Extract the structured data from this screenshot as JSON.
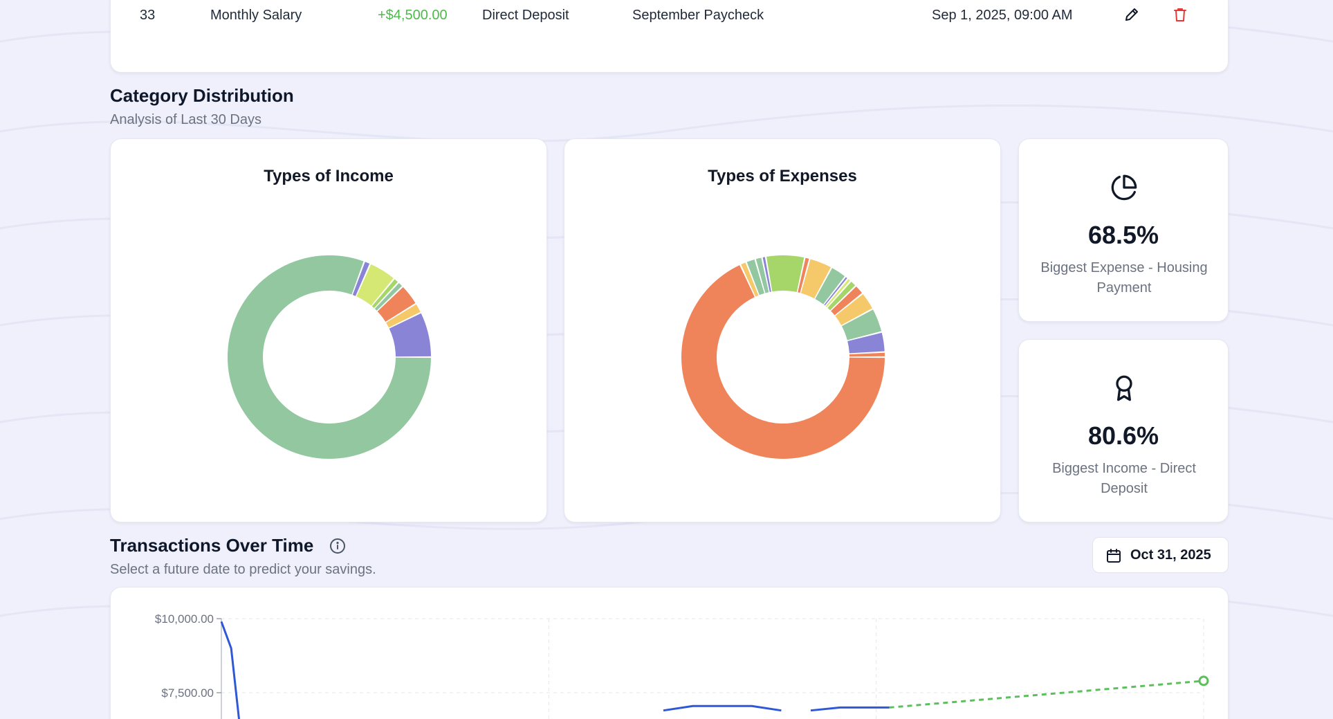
{
  "transaction": {
    "id": "33",
    "name": "Monthly Salary",
    "amount": "+$4,500.00",
    "source": "Direct Deposit",
    "note": "September Paycheck",
    "date": "Sep 1, 2025, 09:00 AM",
    "edit_icon": "pencil-icon",
    "delete_icon": "trash-icon"
  },
  "category": {
    "title": "Category Distribution",
    "subtitle": "Analysis of Last 30 Days"
  },
  "income_card": {
    "title": "Types of Income"
  },
  "expense_card": {
    "title": "Types of Expenses"
  },
  "stats": {
    "expense": {
      "icon": "pie-chart-icon",
      "value": "68.5%",
      "label": "Biggest Expense - Housing Payment"
    },
    "income": {
      "icon": "award-icon",
      "value": "80.6%",
      "label": "Biggest Income - Direct Deposit"
    }
  },
  "over_time": {
    "title": "Transactions Over Time",
    "subtitle": "Select a future date to predict your savings.",
    "info_icon": "info-icon",
    "date_icon": "calendar-icon",
    "date_value": "Oct 31, 2025"
  },
  "colors": {
    "green": "#92c79f",
    "purple": "#8a84d6",
    "lime": "#d6e874",
    "orange": "#ef845a",
    "yellow": "#f5c86a",
    "lightgreen": "#a6d66a",
    "blue": "#2f58d6",
    "forecast": "#5cbf5c",
    "amount_positive": "#4fb84b",
    "delete": "#e53935"
  },
  "chart_data": [
    {
      "type": "pie",
      "title": "Types of Income",
      "values": [
        80.6,
        1.0,
        4.4,
        0.9,
        0.9,
        3.4,
        1.6,
        7.2
      ],
      "colors": [
        "#92c79f",
        "#8a84d6",
        "#d6e874",
        "#a6d66a",
        "#92c79f",
        "#ef845a",
        "#f5c86a",
        "#8a84d6"
      ]
    },
    {
      "type": "pie",
      "title": "Types of Expenses",
      "values": [
        68.5,
        1.0,
        1.5,
        1.1,
        0.6,
        6.2,
        0.8,
        3.7,
        2.6,
        0.5,
        0.6,
        1.1,
        1.6,
        2.9,
        3.9,
        3.2,
        0.8
      ],
      "colors": [
        "#ef845a",
        "#f5c86a",
        "#92c79f",
        "#92c79f",
        "#8a84d6",
        "#a6d66a",
        "#ef845a",
        "#f5c86a",
        "#92c79f",
        "#8a84d6",
        "#d6e874",
        "#a6d66a",
        "#ef845a",
        "#f5c86a",
        "#92c79f",
        "#8a84d6",
        "#ef845a"
      ]
    },
    {
      "type": "line",
      "title": "Transactions Over Time",
      "y_ticks": [
        "$10,000.00",
        "$7,500.00"
      ],
      "ylim": [
        7000,
        10000
      ],
      "grid": true,
      "series": [
        {
          "points": [
            [
              0,
              9900
            ],
            [
              0.01,
              9000
            ],
            [
              0.02,
              6000
            ]
          ]
        },
        {
          "points": [
            [
              0.45,
              6900
            ],
            [
              0.48,
              7050
            ],
            [
              0.54,
              7050
            ],
            [
              0.57,
              6900
            ]
          ]
        },
        {
          "points": [
            [
              0.6,
              6900
            ],
            [
              0.63,
              7000
            ],
            [
              0.68,
              7000
            ]
          ]
        },
        {
          "style": "dashed",
          "points": [
            [
              0.68,
              7000
            ],
            [
              1.0,
              7900
            ]
          ]
        }
      ]
    }
  ]
}
